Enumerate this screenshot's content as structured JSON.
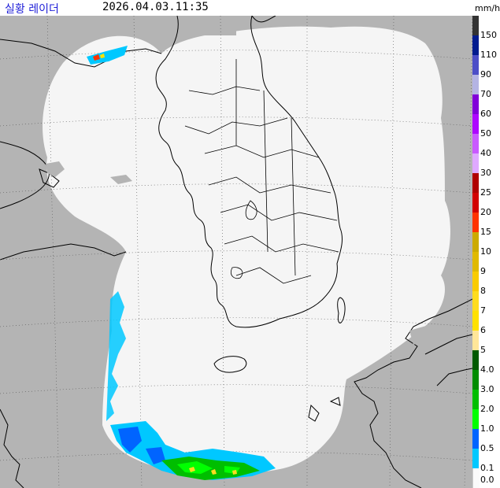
{
  "header": {
    "title": "실황 레이더",
    "timestamp": "2026.04.03.11:35",
    "unit": "mm/h"
  },
  "legend": {
    "items": [
      {
        "label": "150",
        "color": "#333333"
      },
      {
        "label": "110",
        "color": "#021c8f"
      },
      {
        "label": "90",
        "color": "#4c4ec7"
      },
      {
        "label": "70",
        "color": "#b4b4e3"
      },
      {
        "label": "60",
        "color": "#8100d9"
      },
      {
        "label": "50",
        "color": "#ad07ff"
      },
      {
        "label": "40",
        "color": "#c95aff"
      },
      {
        "label": "30",
        "color": "#dfa9ff"
      },
      {
        "label": "25",
        "color": "#b00000"
      },
      {
        "label": "20",
        "color": "#d20000"
      },
      {
        "label": "15",
        "color": "#ff3300"
      },
      {
        "label": "10",
        "color": "#ccaa00"
      },
      {
        "label": "9",
        "color": "#e0b900"
      },
      {
        "label": "8",
        "color": "#f9cb00"
      },
      {
        "label": "7",
        "color": "#ffdc1f"
      },
      {
        "label": "6",
        "color": "#ffe100"
      },
      {
        "label": "5",
        "color": "#ffe699"
      },
      {
        "label": "4.0",
        "color": "#005a00"
      },
      {
        "label": "3.0",
        "color": "#008c00"
      },
      {
        "label": "2.0",
        "color": "#00be00"
      },
      {
        "label": "1.0",
        "color": "#00ff00"
      },
      {
        "label": "0.5",
        "color": "#0064ff"
      },
      {
        "label": "0.1",
        "color": "#00c8ff"
      },
      {
        "label": "0.0",
        "color": "#fafafa"
      }
    ]
  },
  "map": {
    "outside_color": "#b4b4b4",
    "radar_area_color": "#f5f5f5",
    "boundary_color": "#000000",
    "grid_color": "#555555"
  }
}
